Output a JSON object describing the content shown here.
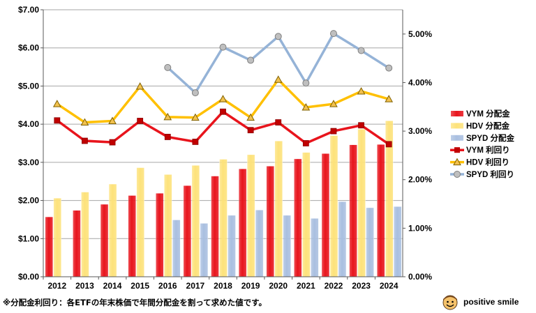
{
  "chart_data": {
    "type": "bar+line",
    "categories": [
      "2012",
      "2013",
      "2014",
      "2015",
      "2016",
      "2017",
      "2018",
      "2019",
      "2020",
      "2021",
      "2022",
      "2023",
      "2024"
    ],
    "bar_series": [
      {
        "name": "VYM 分配金",
        "color": "#e8141c",
        "values": [
          1.57,
          1.74,
          1.9,
          2.13,
          2.19,
          2.39,
          2.64,
          2.83,
          2.9,
          3.09,
          3.23,
          3.46,
          3.47
        ]
      },
      {
        "name": "HDV 分配金",
        "color": "#fde27a",
        "values": [
          2.06,
          2.22,
          2.43,
          2.86,
          2.68,
          2.92,
          3.08,
          3.2,
          3.56,
          3.26,
          3.7,
          3.87,
          4.09
        ]
      },
      {
        "name": "SPYD 分配金",
        "color": "#a9bfe0",
        "values": [
          null,
          null,
          null,
          null,
          1.49,
          1.4,
          1.61,
          1.75,
          1.61,
          1.53,
          1.97,
          1.81,
          1.84
        ]
      }
    ],
    "line_series": [
      {
        "name": "VYM 利回り",
        "color": "#e8141c",
        "marker": "square",
        "values": [
          3.22,
          2.8,
          2.77,
          3.21,
          2.88,
          2.78,
          3.4,
          3.02,
          3.18,
          2.75,
          3.0,
          3.12,
          2.73
        ]
      },
      {
        "name": "HDV 利回り",
        "color": "#ffc000",
        "marker": "triangle",
        "values": [
          3.56,
          3.18,
          3.21,
          3.92,
          3.29,
          3.28,
          3.66,
          3.28,
          4.06,
          3.49,
          3.56,
          3.82,
          3.66
        ]
      },
      {
        "name": "SPYD 利回り",
        "color": "#95b3d7",
        "marker": "circle",
        "values": [
          null,
          null,
          null,
          null,
          4.31,
          3.79,
          4.73,
          4.46,
          4.95,
          3.99,
          5.01,
          4.66,
          4.3
        ]
      }
    ],
    "y_left": {
      "min": 0,
      "max": 7,
      "step": 1,
      "tick_labels": [
        "$0.00",
        "$1.00",
        "$2.00",
        "$3.00",
        "$4.00",
        "$5.00",
        "$6.00",
        "$7.00"
      ]
    },
    "y_right": {
      "min": 0,
      "max": 5.5,
      "step": 1,
      "tick_labels": [
        "0.00%",
        "1.00%",
        "2.00%",
        "3.00%",
        "4.00%",
        "5.00%"
      ]
    },
    "legend_position": "right",
    "grid": true
  },
  "footnote": "※分配金利回り：各ETFの年末株価で年間分配金を割って求めた値です。",
  "brand": {
    "name": "positive smile"
  }
}
